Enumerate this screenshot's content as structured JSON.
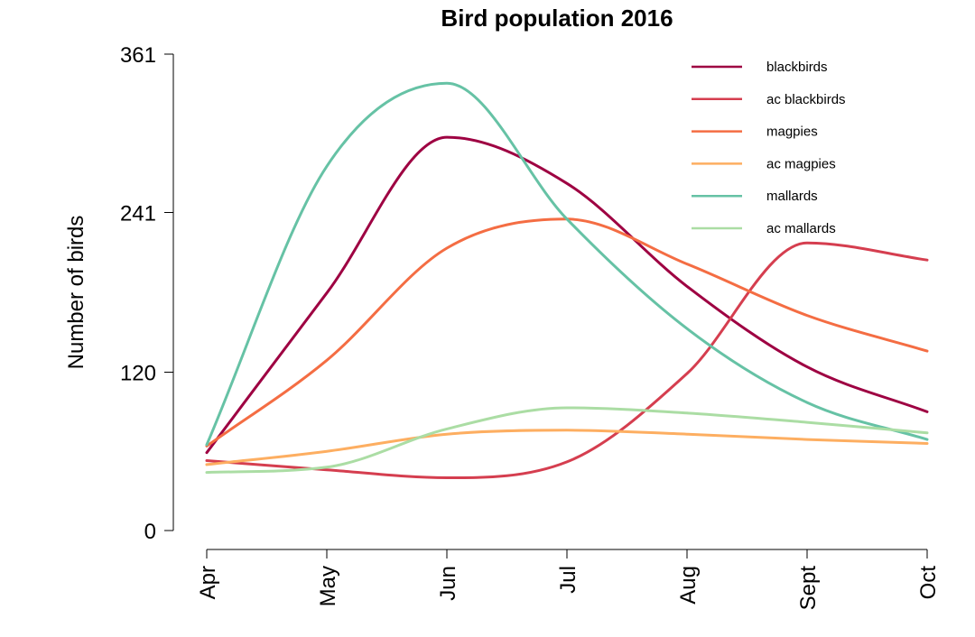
{
  "chart_data": {
    "type": "line",
    "title": "Bird population 2016",
    "xlabel": "",
    "ylabel": "Number of birds",
    "x_tick_labels": [
      "Apr",
      "May",
      "Jun",
      "Jul",
      "Aug",
      "Sept",
      "Oct"
    ],
    "y_ticks": [
      0,
      120,
      241,
      361
    ],
    "ylim": [
      0,
      361
    ],
    "x": [
      "Apr",
      "May",
      "Jun",
      "Jul",
      "Aug",
      "Sept",
      "Oct"
    ],
    "legend_position": "top-right",
    "grid": false,
    "series": [
      {
        "name": "blackbirds",
        "color": "#9E0142",
        "values": [
          59,
          180,
          298,
          263,
          185,
          124,
          90
        ]
      },
      {
        "name": "ac blackbirds",
        "color": "#D53E4F",
        "values": [
          53,
          46,
          40,
          52,
          119,
          218,
          205
        ]
      },
      {
        "name": "magpies",
        "color": "#F46D43",
        "values": [
          64,
          129,
          214,
          236,
          202,
          163,
          136
        ]
      },
      {
        "name": "ac magpies",
        "color": "#FDAE61",
        "values": [
          50,
          60,
          73,
          76,
          73,
          69,
          66
        ]
      },
      {
        "name": "mallards",
        "color": "#66C2A5",
        "values": [
          65,
          276,
          339,
          236,
          153,
          97,
          69
        ]
      },
      {
        "name": "ac mallards",
        "color": "#ABDDA4",
        "values": [
          44,
          48,
          77,
          93,
          89,
          82,
          74
        ]
      }
    ]
  }
}
